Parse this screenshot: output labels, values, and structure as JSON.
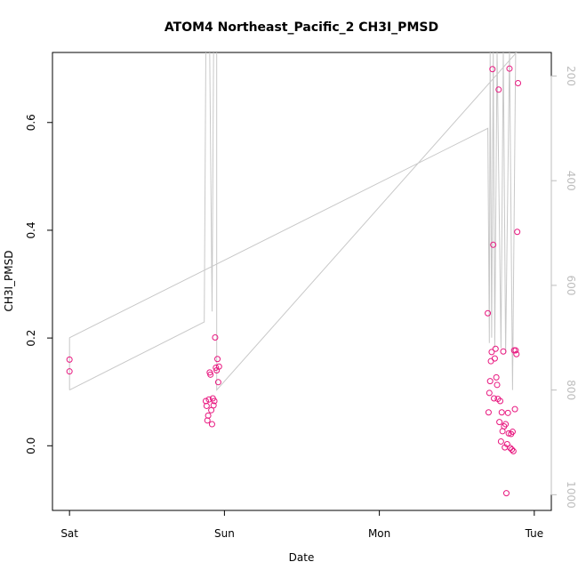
{
  "chart_data": {
    "type": "scatter",
    "title": "ATOM4 Northeast_Pacific_2 CH3I_PMSD",
    "xlabel": "Date",
    "ylabel": "CH3I_PMSD",
    "x_ticks": [
      {
        "value": 0,
        "label": "Sat"
      },
      {
        "value": 1,
        "label": "Sun"
      },
      {
        "value": 2,
        "label": "Mon"
      },
      {
        "value": 3,
        "label": "Tue"
      }
    ],
    "y_ticks": [
      0.0,
      0.2,
      0.4,
      0.6
    ],
    "y_tick_labels": [
      "0.0",
      "0.2",
      "0.4",
      "0.6"
    ],
    "xlim": [
      -0.11,
      3.11
    ],
    "ylim": [
      -0.12,
      0.73
    ],
    "secondary_y": {
      "ticks": [
        200,
        400,
        600,
        800,
        1000
      ],
      "tick_labels": [
        "200",
        "400",
        "600",
        "800",
        "1000"
      ],
      "lim": [
        1030,
        155
      ],
      "color": "#bdbdbd"
    },
    "colors": {
      "points": "#e8177f",
      "line": "#c8c8c8"
    },
    "series": [
      {
        "values": [
          [
            0.0,
            0.16
          ],
          [
            0.0,
            0.138
          ],
          [
            0.88,
            0.083
          ],
          [
            0.885,
            0.074
          ],
          [
            0.89,
            0.047
          ],
          [
            0.895,
            0.056
          ],
          [
            0.9,
            0.086
          ],
          [
            0.905,
            0.136
          ],
          [
            0.91,
            0.132
          ],
          [
            0.915,
            0.066
          ],
          [
            0.92,
            0.04
          ],
          [
            0.925,
            0.088
          ],
          [
            0.93,
            0.075
          ],
          [
            0.935,
            0.083
          ],
          [
            0.94,
            0.201
          ],
          [
            0.945,
            0.145
          ],
          [
            0.95,
            0.14
          ],
          [
            0.955,
            0.161
          ],
          [
            0.96,
            0.118
          ],
          [
            0.965,
            0.147
          ],
          [
            2.7,
            0.246
          ],
          [
            2.705,
            0.062
          ],
          [
            2.71,
            0.098
          ],
          [
            2.715,
            0.12
          ],
          [
            2.72,
            0.157
          ],
          [
            2.725,
            0.174
          ],
          [
            2.73,
            0.699
          ],
          [
            2.735,
            0.373
          ],
          [
            2.74,
            0.088
          ],
          [
            2.745,
            0.162
          ],
          [
            2.75,
            0.18
          ],
          [
            2.755,
            0.127
          ],
          [
            2.76,
            0.113
          ],
          [
            2.765,
            0.087
          ],
          [
            2.77,
            0.661
          ],
          [
            2.775,
            0.044
          ],
          [
            2.78,
            0.083
          ],
          [
            2.785,
            0.008
          ],
          [
            2.79,
            0.062
          ],
          [
            2.795,
            0.027
          ],
          [
            2.8,
            0.175
          ],
          [
            2.805,
            0.036
          ],
          [
            2.81,
            -0.003
          ],
          [
            2.815,
            0.04
          ],
          [
            2.82,
            -0.088
          ],
          [
            2.825,
            0.003
          ],
          [
            2.83,
            0.061
          ],
          [
            2.835,
            0.023
          ],
          [
            2.84,
            0.7
          ],
          [
            2.845,
            -0.004
          ],
          [
            2.85,
            0.022
          ],
          [
            2.855,
            -0.007
          ],
          [
            2.86,
            0.026
          ],
          [
            2.865,
            -0.01
          ],
          [
            2.87,
            0.177
          ],
          [
            2.875,
            0.068
          ],
          [
            2.88,
            0.177
          ],
          [
            2.885,
            0.17
          ],
          [
            2.89,
            0.397
          ],
          [
            2.895,
            0.673
          ]
        ]
      },
      {
        "axis": "secondary",
        "values": [
          [
            0.0,
            800
          ],
          [
            0.0,
            700
          ],
          [
            2.7,
            300
          ],
          [
            2.71,
            710
          ],
          [
            2.715,
            150
          ],
          [
            2.725,
            700
          ],
          [
            2.735,
            150
          ],
          [
            2.745,
            720
          ],
          [
            2.76,
            150
          ],
          [
            2.785,
            720
          ],
          [
            2.8,
            150
          ],
          [
            2.815,
            730
          ],
          [
            2.84,
            150
          ],
          [
            2.86,
            800
          ],
          [
            2.88,
            150
          ],
          [
            2.9,
            150
          ],
          [
            0.95,
            800
          ],
          [
            0.95,
            150
          ],
          [
            0.93,
            150
          ],
          [
            0.92,
            650
          ],
          [
            0.905,
            150
          ],
          [
            0.88,
            150
          ],
          [
            0.87,
            670
          ],
          [
            0.0,
            800
          ]
        ]
      }
    ]
  }
}
